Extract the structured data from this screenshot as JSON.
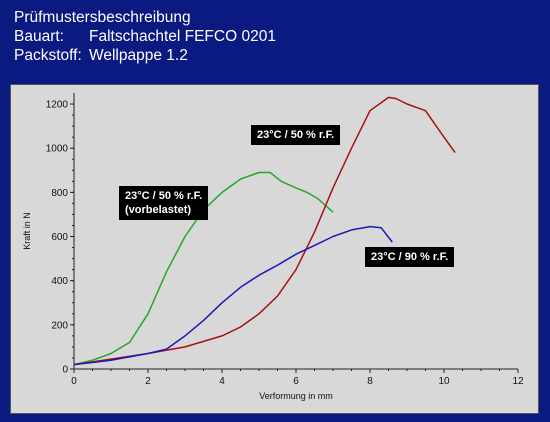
{
  "header": {
    "title": "Prüfmustersbeschreibung",
    "rows": [
      {
        "key": "Bauart:",
        "value": "Faltschachtel FEFCO 0201"
      },
      {
        "key": "Packstoff:",
        "value": "Wellpappe 1.2"
      }
    ]
  },
  "chart_data": {
    "type": "line",
    "xlabel": "Verformung in mm",
    "ylabel": "Kraft in N",
    "xlim": [
      0,
      12
    ],
    "ylim": [
      0,
      1250
    ],
    "xticks": [
      "0",
      "2",
      "4",
      "6",
      "8",
      "10",
      "12"
    ],
    "yticks": [
      "0",
      "200",
      "400",
      "600",
      "800",
      "1000",
      "1200"
    ],
    "grid": false,
    "colors": {
      "green": "#22aa22",
      "red": "#aa1111",
      "blue": "#1a1ab8"
    },
    "series": [
      {
        "name": "23°C / 50 % r.F. (vorbelastet)",
        "color": "#22aa22",
        "x": [
          0,
          0.5,
          1.0,
          1.5,
          2.0,
          2.5,
          3.0,
          3.5,
          4.0,
          4.5,
          5.0,
          5.3,
          5.6,
          6.0,
          6.3,
          6.6,
          7.0
        ],
        "y": [
          20,
          40,
          70,
          120,
          250,
          440,
          600,
          720,
          800,
          860,
          890,
          890,
          850,
          820,
          800,
          770,
          710
        ]
      },
      {
        "name": "23°C / 50 % r.F.",
        "color": "#aa1111",
        "x": [
          0,
          1,
          2,
          3,
          4,
          4.5,
          5,
          5.5,
          6,
          6.5,
          7,
          7.5,
          8,
          8.5,
          8.7,
          9,
          9.5,
          10,
          10.3
        ],
        "y": [
          20,
          45,
          70,
          100,
          150,
          190,
          250,
          330,
          450,
          620,
          820,
          1000,
          1170,
          1230,
          1225,
          1200,
          1170,
          1050,
          980
        ]
      },
      {
        "name": "23°C / 90 % r.F.",
        "color": "#1a1ab8",
        "x": [
          0,
          1,
          2,
          2.5,
          3,
          3.5,
          4,
          4.5,
          5,
          5.5,
          6,
          6.5,
          7,
          7.5,
          8,
          8.3,
          8.6
        ],
        "y": [
          20,
          40,
          70,
          90,
          150,
          220,
          300,
          370,
          425,
          470,
          520,
          560,
          600,
          630,
          645,
          640,
          575
        ]
      }
    ],
    "annotations": [
      {
        "text": "23°C / 50 % r.F.",
        "series": 1
      },
      {
        "text": "23°C / 50 % r.F.",
        "text2": "(vorbelastet)",
        "series": 0
      },
      {
        "text": "23°C / 90 % r.F.",
        "series": 2
      }
    ]
  }
}
